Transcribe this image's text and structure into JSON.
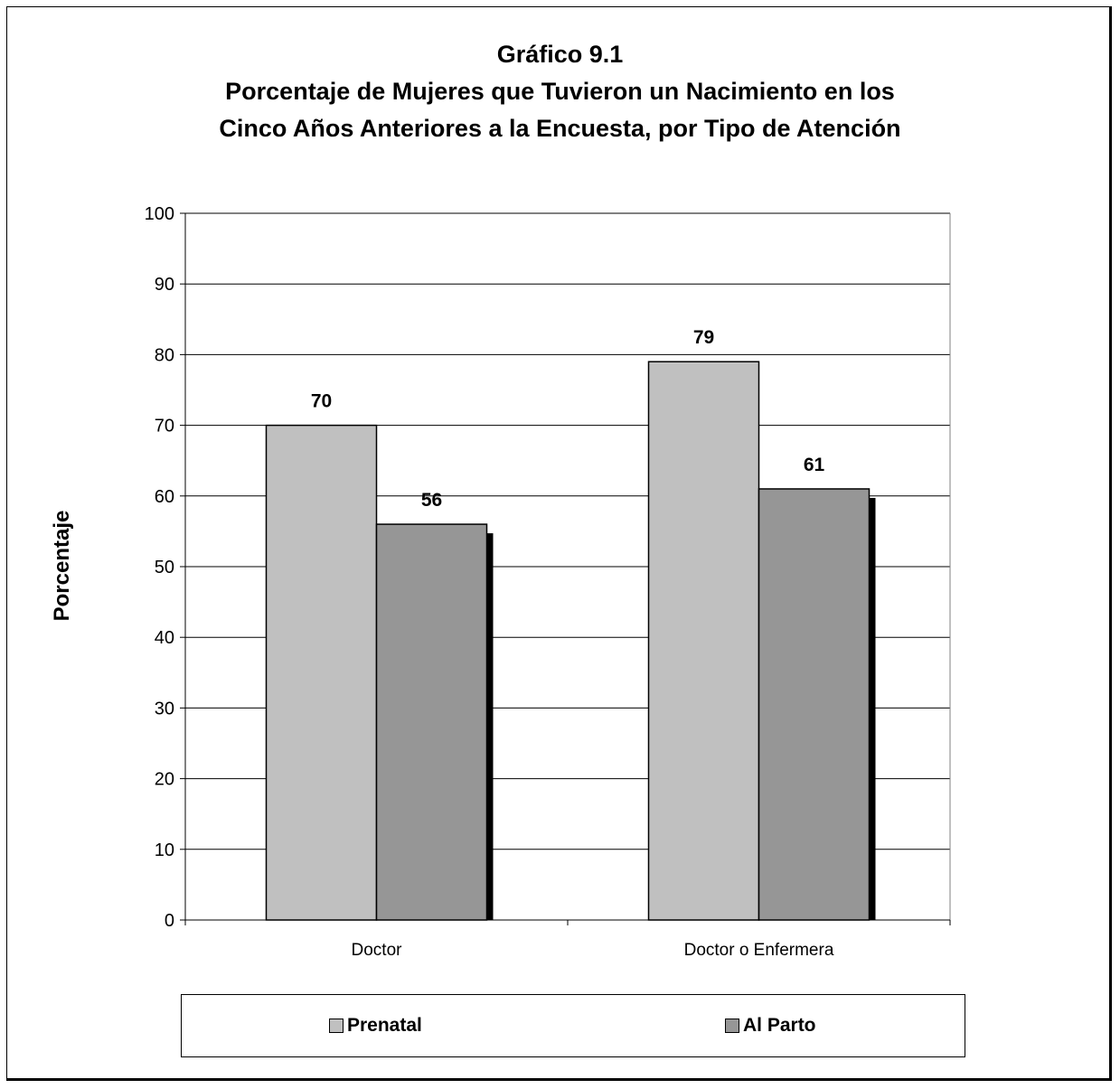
{
  "chart_data": {
    "type": "bar",
    "title": "Gráfico 9.1",
    "subtitle_lines": [
      "Porcentaje de Mujeres que Tuvieron un Nacimiento en los",
      "Cinco Años Anteriores a la Encuesta,  por Tipo de Atención"
    ],
    "xlabel": "",
    "ylabel": "Porcentaje",
    "ylim": [
      0,
      100
    ],
    "yticks": [
      0,
      10,
      20,
      30,
      40,
      50,
      60,
      70,
      80,
      90,
      100
    ],
    "grid": true,
    "legend_position": "bottom",
    "categories": [
      "Doctor",
      "Doctor o Enfermera"
    ],
    "series": [
      {
        "name": "Prenatal",
        "values": [
          70,
          79
        ],
        "color": "#c0c0c0"
      },
      {
        "name": "Al Parto",
        "values": [
          56,
          61
        ],
        "color": "#969696"
      }
    ],
    "data_labels": true
  }
}
